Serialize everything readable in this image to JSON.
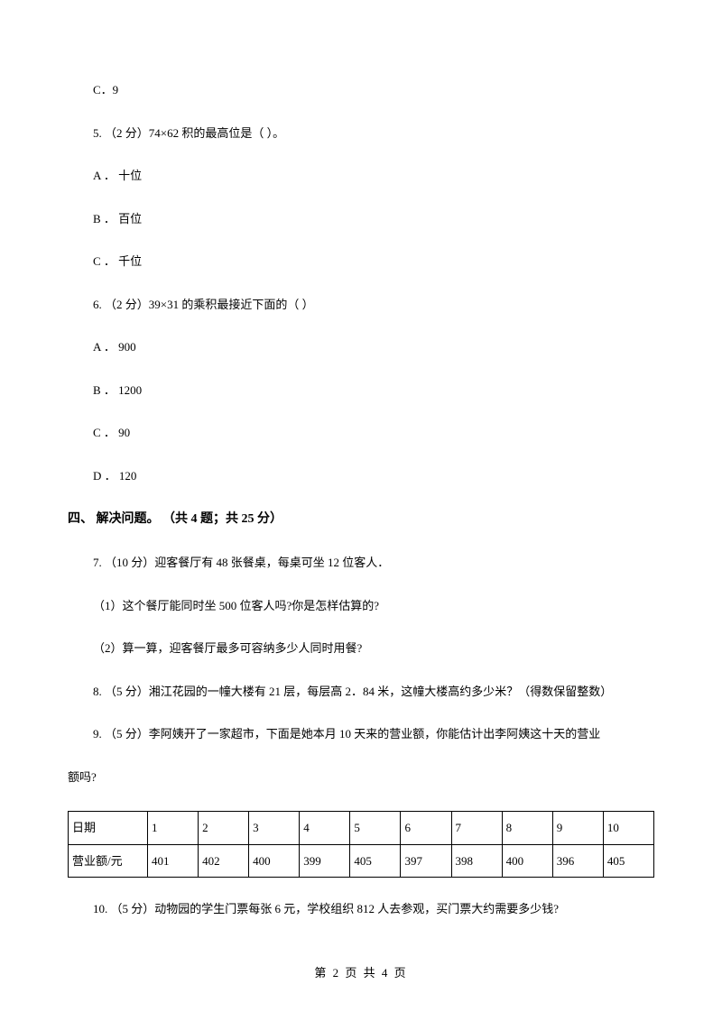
{
  "q4_optC": "C．9",
  "q5": {
    "text": "5.  （2 分）74×62 积的最高位是（     ）。",
    "optA": "A ． 十位",
    "optB": "B ． 百位",
    "optC": "C ． 千位"
  },
  "q6": {
    "text": "6.  （2 分）39×31 的乘积最接近下面的（     ）",
    "optA": "A ． 900",
    "optB": "B ． 1200",
    "optC": "C ． 90",
    "optD": "D ． 120"
  },
  "section4_header": "四、 解决问题。 （共 4 题；共 25 分）",
  "q7": {
    "text": "7.  （10 分）迎客餐厅有 48 张餐桌，每桌可坐 12 位客人．",
    "sub1": "（1）这个餐厅能同时坐 500 位客人吗?你是怎样估算的?",
    "sub2": "（2）算一算，迎客餐厅最多可容纳多少人同时用餐?"
  },
  "q8": "8.  （5 分）湘江花园的一幢大楼有 21 层，每层高 2．84 米，这幢大楼高约多少米？（得数保留整数）",
  "q9": {
    "text": "9.   （5 分）李阿姨开了一家超市，下面是她本月 10 天来的营业额，你能估计出李阿姨这十天的营业",
    "continuation": "额吗?"
  },
  "table": {
    "row1_label": "日期",
    "row1_data": [
      "1",
      "2",
      "3",
      "4",
      "5",
      "6",
      "7",
      "8",
      "9",
      "10"
    ],
    "row2_label": "营业额/元",
    "row2_data": [
      "401",
      "402",
      "400",
      "399",
      "405",
      "397",
      "398",
      "400",
      "396",
      "405"
    ]
  },
  "q10": "10.  （5 分）动物园的学生门票每张 6 元，学校组织 812 人去参观，买门票大约需要多少钱?",
  "footer": "第 2 页 共 4 页"
}
